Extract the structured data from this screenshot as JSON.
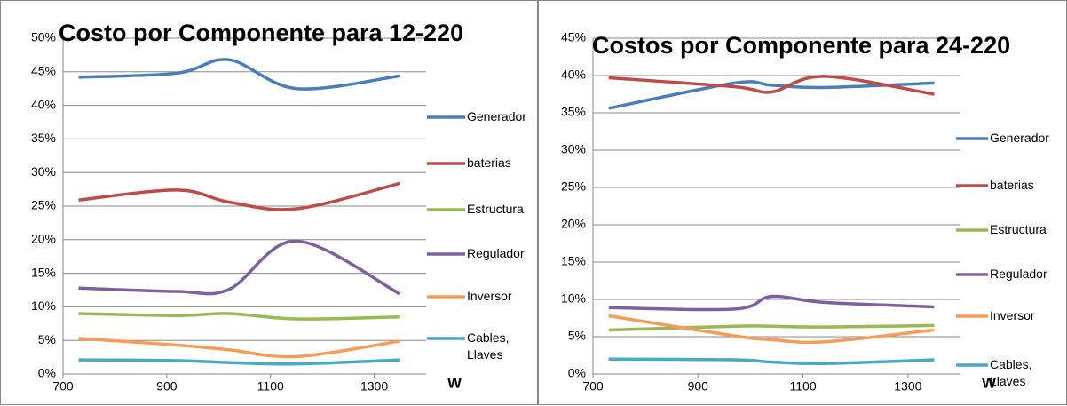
{
  "chart_data": [
    {
      "type": "line",
      "title": "Costo por Componente para 12-220",
      "x_label": "W",
      "x": [
        730,
        920,
        1020,
        1150,
        1350
      ],
      "xlim": [
        700,
        1400
      ],
      "xticks": [
        700,
        900,
        1100,
        1300
      ],
      "ylim": [
        0,
        50
      ],
      "yticks": [
        {
          "value": 0,
          "label": "0%"
        },
        {
          "value": 5,
          "label": "5%"
        },
        {
          "value": 10,
          "label": "10%"
        },
        {
          "value": 15,
          "label": "15%"
        },
        {
          "value": 20,
          "label": "20%"
        },
        {
          "value": 25,
          "label": "25%"
        },
        {
          "value": 30,
          "label": "30%"
        },
        {
          "value": 35,
          "label": "35%"
        },
        {
          "value": 40,
          "label": "40%"
        },
        {
          "value": 45,
          "label": "45%"
        },
        {
          "value": 50,
          "label": "50%"
        }
      ],
      "grid": true,
      "legend": "right",
      "series": [
        {
          "name": "Generador",
          "color": "#4a7ebb",
          "values": [
            44.2,
            44.8,
            46.8,
            42.5,
            44.4
          ]
        },
        {
          "name": "baterias",
          "color": "#be4b48",
          "values": [
            25.9,
            27.4,
            25.6,
            24.6,
            28.4
          ]
        },
        {
          "name": "Estructura",
          "color": "#98b954",
          "values": [
            9.0,
            8.7,
            9.0,
            8.2,
            8.5
          ]
        },
        {
          "name": "Regulador",
          "color": "#7d60a0",
          "values": [
            12.8,
            12.3,
            12.6,
            19.8,
            11.9
          ]
        },
        {
          "name": "Inversor",
          "color": "#f59d56",
          "values": [
            5.3,
            4.3,
            3.6,
            2.6,
            4.9
          ]
        },
        {
          "name": "Cables, Llaves",
          "color": "#46aac5",
          "values": [
            2.1,
            2.0,
            1.7,
            1.5,
            2.1
          ]
        }
      ]
    },
    {
      "type": "line",
      "title": "Costos por Componente para 24-220",
      "x_label": "W",
      "x": [
        730,
        970,
        1040,
        1140,
        1350
      ],
      "xlim": [
        700,
        1400
      ],
      "xticks": [
        700,
        900,
        1100,
        1300
      ],
      "ylim": [
        0,
        45
      ],
      "yticks": [
        {
          "value": 0,
          "label": "0%"
        },
        {
          "value": 5,
          "label": "5%"
        },
        {
          "value": 10,
          "label": "10%"
        },
        {
          "value": 15,
          "label": "15%"
        },
        {
          "value": 20,
          "label": "20%"
        },
        {
          "value": 25,
          "label": "25%"
        },
        {
          "value": 30,
          "label": "30%"
        },
        {
          "value": 35,
          "label": "35%"
        },
        {
          "value": 40,
          "label": "40%"
        },
        {
          "value": 45,
          "label": "45%"
        }
      ],
      "grid": true,
      "legend": "right",
      "series": [
        {
          "name": "Generador",
          "color": "#4a7ebb",
          "values": [
            35.6,
            39.0,
            38.7,
            38.4,
            39.0
          ]
        },
        {
          "name": "baterias",
          "color": "#be4b48",
          "values": [
            39.7,
            38.5,
            37.8,
            39.9,
            37.5
          ]
        },
        {
          "name": "Estructura",
          "color": "#98b954",
          "values": [
            5.9,
            6.4,
            6.4,
            6.3,
            6.5
          ]
        },
        {
          "name": "Regulador",
          "color": "#7d60a0",
          "values": [
            8.9,
            8.7,
            10.4,
            9.6,
            9.0
          ]
        },
        {
          "name": "Inversor",
          "color": "#f59d56",
          "values": [
            7.8,
            5.1,
            4.6,
            4.3,
            5.9
          ]
        },
        {
          "name": "Cables, Llaves",
          "color": "#46aac5",
          "values": [
            2.0,
            1.9,
            1.6,
            1.4,
            1.9
          ]
        }
      ]
    }
  ]
}
